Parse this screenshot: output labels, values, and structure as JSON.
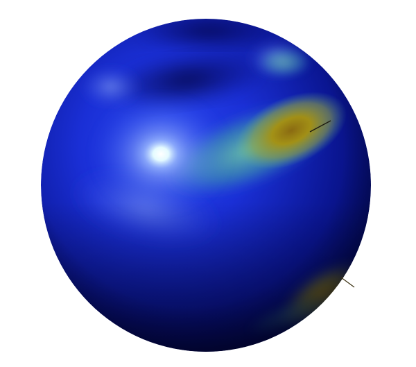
{
  "scene": {
    "object": "sphere",
    "background_color": "#ffffff",
    "colors": {
      "base_blue": "#1a2fd6",
      "deep_blue": "#020a5a",
      "shadow_navy": "#010630",
      "cyan_highlight": "#e8ffff",
      "teal_band": "#5fb8a0",
      "olive_yellow": "#a8920e",
      "dark_olive": "#6b5a10",
      "pale_blue": "#6e86e8"
    },
    "features": [
      "specular-highlight",
      "upper-right-yellow-blob",
      "lower-right-yellow-blob",
      "teal-band",
      "surface-normal-line-upper",
      "surface-normal-line-lower"
    ]
  }
}
